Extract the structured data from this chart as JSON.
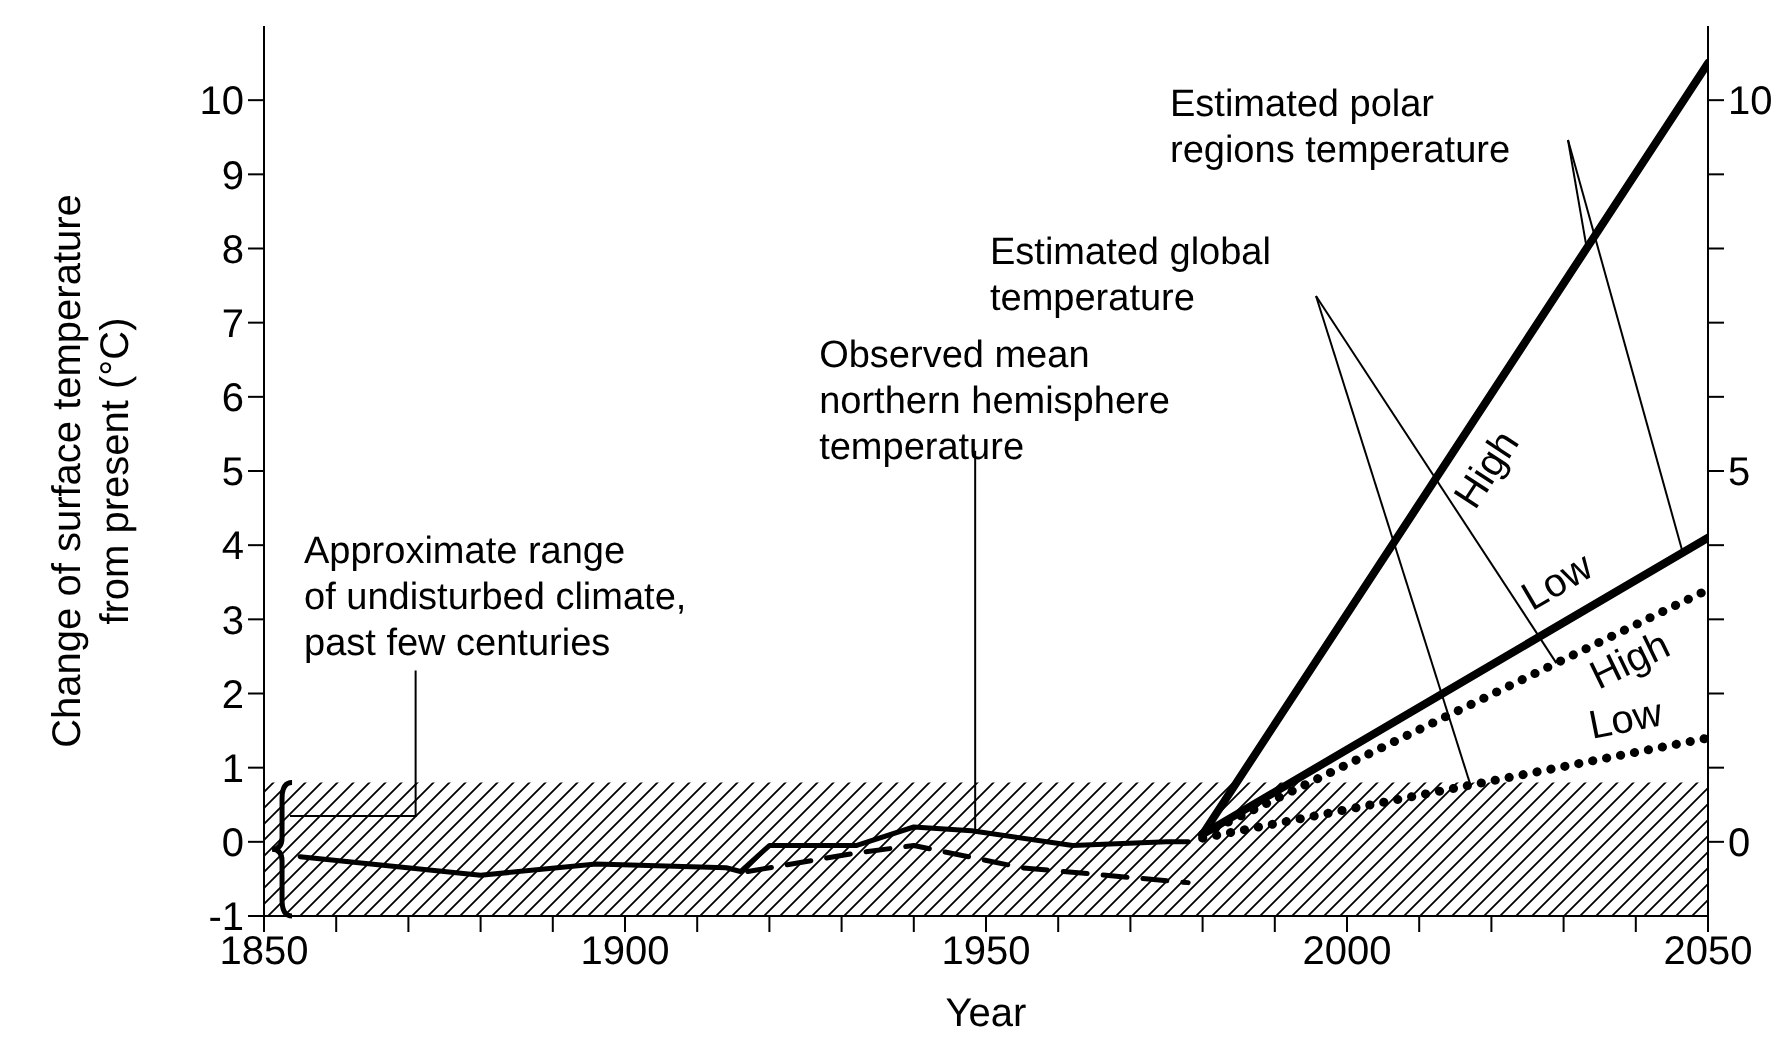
{
  "chart_data": {
    "type": "line",
    "xlabel": "Year",
    "ylabel": "Change of surface temperature\nfrom present (°C)",
    "xlim": [
      1850,
      2050
    ],
    "xticks": [
      1850,
      {
        "value": 1860,
        "label": null
      },
      {
        "value": 1870,
        "label": null
      },
      {
        "value": 1880,
        "label": null
      },
      {
        "value": 1890,
        "label": null
      },
      1900,
      {
        "value": 1910,
        "label": null
      },
      {
        "value": 1920,
        "label": null
      },
      {
        "value": 1930,
        "label": null
      },
      {
        "value": 1940,
        "label": null
      },
      1950,
      {
        "value": 1960,
        "label": null
      },
      {
        "value": 1970,
        "label": null
      },
      {
        "value": 1980,
        "label": null
      },
      {
        "value": 1990,
        "label": null
      },
      2000,
      {
        "value": 2010,
        "label": null
      },
      {
        "value": 2020,
        "label": null
      },
      {
        "value": 2030,
        "label": null
      },
      {
        "value": 2040,
        "label": null
      },
      2050
    ],
    "ylim": [
      -1,
      11
    ],
    "yticks": [
      -1,
      0,
      1,
      2,
      3,
      4,
      5,
      6,
      7,
      8,
      9,
      10
    ],
    "y2lim": [
      -1,
      11
    ],
    "y2ticks": [
      0,
      {
        "value": 1,
        "label": null
      },
      {
        "value": 2,
        "label": null
      },
      {
        "value": 3,
        "label": null
      },
      {
        "value": 4,
        "label": null
      },
      5,
      {
        "value": 6,
        "label": null
      },
      {
        "value": 7,
        "label": null
      },
      {
        "value": 8,
        "label": null
      },
      {
        "value": 9,
        "label": null
      },
      10
    ],
    "series": [
      {
        "color": "#000000",
        "line_style": "solid",
        "x": [
          1855,
          1880,
          1896,
          1914,
          1916,
          1920,
          1932,
          1940,
          1948,
          1962,
          1975,
          1978
        ],
        "values": [
          -0.2,
          -0.45,
          -0.3,
          -0.35,
          -0.4,
          -0.05,
          -0.05,
          0.2,
          0.15,
          -0.05,
          0,
          0.0
        ]
      },
      {
        "color": "#000000",
        "line_style": "dashed",
        "x": [
          1917,
          1932,
          1940,
          1955,
          1978
        ],
        "values": [
          -0.4,
          -0.15,
          -0.05,
          -0.35,
          -0.55
        ]
      },
      {
        "name": "High",
        "color": "#000000",
        "line_style": "solid",
        "x": [
          1980,
          2050
        ],
        "values": [
          0.1,
          10.5
        ]
      },
      {
        "name": "Low",
        "color": "#000000",
        "line_style": "solid",
        "x": [
          1980,
          2050
        ],
        "values": [
          0.1,
          4.1
        ]
      },
      {
        "name": "High",
        "color": "#000000",
        "line_style": "dotted",
        "x": [
          1980,
          2050
        ],
        "values": [
          0.1,
          3.4
        ]
      },
      {
        "name": "Low",
        "color": "#000000",
        "line_style": "dotted",
        "x": [
          1980,
          2050
        ],
        "values": [
          0.05,
          1.4
        ]
      }
    ],
    "bands": [
      {
        "axis": "y",
        "from": -1,
        "to": 0.8,
        "label": "Approximate range\nof undisturbed climate,\npast few centuries",
        "color": "#000000"
      }
    ],
    "annotations": [
      {
        "text": "Observed mean\nnorthern hemisphere\ntemperature",
        "x": 1948.5,
        "y": 0.15
      },
      "Estimated global\ntemperature",
      "Estimated polar\nregions temperature"
    ]
  }
}
